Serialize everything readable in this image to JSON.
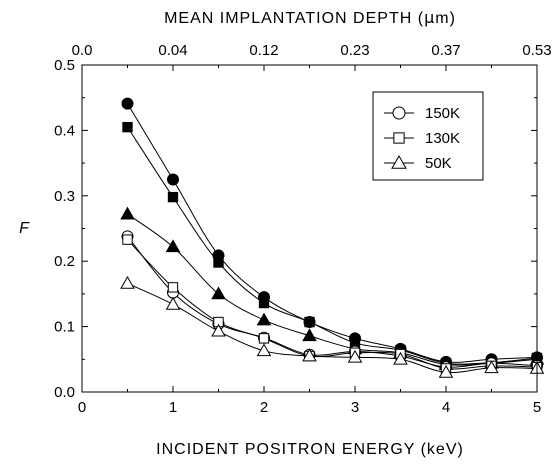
{
  "chart_data": {
    "type": "scatter",
    "title": "",
    "xlabel": "INCIDENT POSITRON ENERGY (keV)",
    "ylabel": "F",
    "top_axis_label": "MEAN IMPLANTATION DEPTH (μm)",
    "top_axis_label_parts": [
      "MEAN IMPLANTATION DEPTH (",
      "μ",
      "m)"
    ],
    "xlim": [
      0,
      5
    ],
    "ylim": [
      0,
      0.5
    ],
    "x_ticks": [
      "0",
      "1",
      "2",
      "3",
      "4",
      "5"
    ],
    "y_ticks": [
      "0.0",
      "0.1",
      "0.2",
      "0.3",
      "0.4",
      "0.5"
    ],
    "top_ticks": [
      "0.0",
      "0.04",
      "0.12",
      "0.23",
      "0.37",
      "0.53"
    ],
    "grid": false,
    "legend_position": "top-right",
    "legend": [
      {
        "label": "150K",
        "marker": "circle"
      },
      {
        "label": "130K",
        "marker": "square"
      },
      {
        "label": "50K",
        "marker": "triangle"
      }
    ],
    "series": [
      {
        "marker": "circle",
        "filled": true,
        "x": [
          0.5,
          1.0,
          1.5,
          2.0,
          2.5,
          3.0,
          3.5,
          4.0,
          4.5,
          5.0
        ],
        "y": [
          0.441,
          0.325,
          0.209,
          0.145,
          0.107,
          0.082,
          0.066,
          0.046,
          0.05,
          0.053
        ]
      },
      {
        "marker": "square",
        "filled": true,
        "x": [
          0.5,
          1.0,
          1.5,
          2.0,
          2.5,
          3.0,
          3.5,
          4.0,
          4.5,
          5.0
        ],
        "y": [
          0.405,
          0.298,
          0.198,
          0.136,
          0.107,
          0.075,
          0.064,
          0.044,
          0.045,
          0.052
        ]
      },
      {
        "marker": "triangle",
        "filled": true,
        "x": [
          0.5,
          1.0,
          1.5,
          2.0,
          2.5,
          3.0,
          3.5,
          4.0,
          4.5,
          5.0
        ],
        "y": [
          0.272,
          0.222,
          0.15,
          0.11,
          0.086,
          0.066,
          0.06,
          0.042,
          0.044,
          0.05
        ]
      },
      {
        "marker": "circle",
        "filled": false,
        "x": [
          0.5,
          1.0,
          1.5,
          2.0,
          2.5,
          3.0,
          3.5,
          4.0,
          4.5,
          5.0
        ],
        "y": [
          0.238,
          0.152,
          0.104,
          0.083,
          0.057,
          0.062,
          0.055,
          0.038,
          0.044,
          0.04
        ]
      },
      {
        "marker": "square",
        "filled": false,
        "x": [
          0.5,
          1.0,
          1.5,
          2.0,
          2.5,
          3.0,
          3.5,
          4.0,
          4.5,
          5.0
        ],
        "y": [
          0.233,
          0.16,
          0.107,
          0.082,
          0.055,
          0.06,
          0.058,
          0.036,
          0.04,
          0.038
        ]
      },
      {
        "marker": "triangle",
        "filled": false,
        "x": [
          0.5,
          1.0,
          1.5,
          2.0,
          2.5,
          3.0,
          3.5,
          4.0,
          4.5,
          5.0
        ],
        "y": [
          0.166,
          0.134,
          0.093,
          0.063,
          0.055,
          0.053,
          0.05,
          0.03,
          0.037,
          0.036
        ]
      }
    ]
  }
}
